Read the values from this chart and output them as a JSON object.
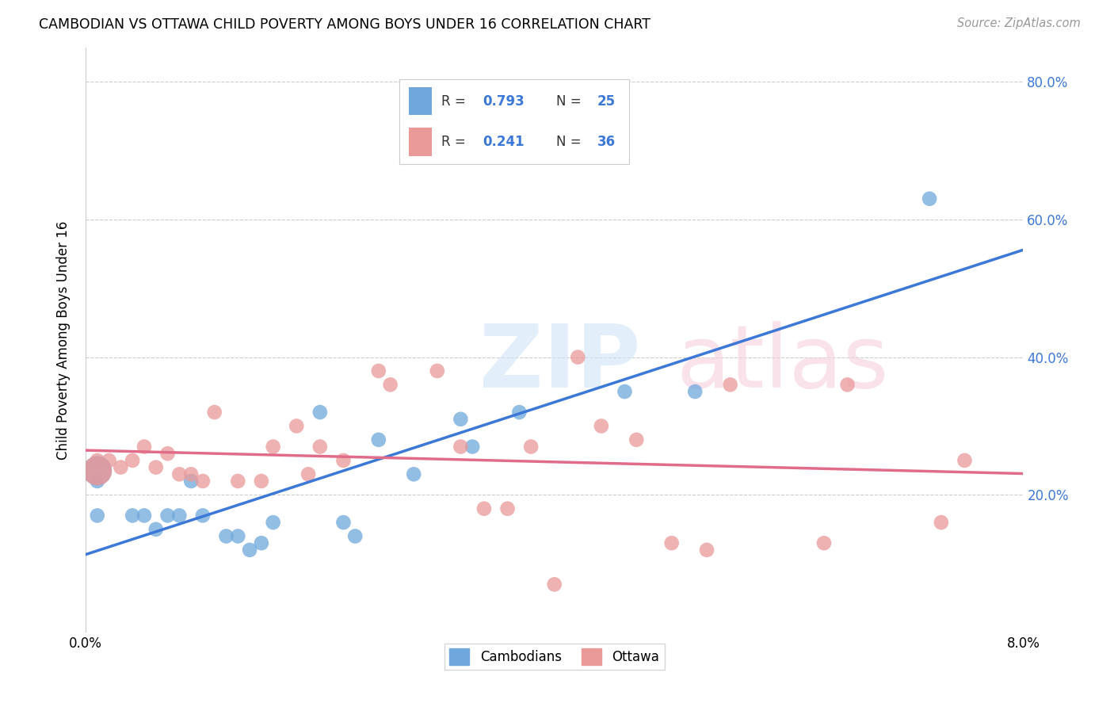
{
  "title": "CAMBODIAN VS OTTAWA CHILD POVERTY AMONG BOYS UNDER 16 CORRELATION CHART",
  "source": "Source: ZipAtlas.com",
  "ylabel": "Child Poverty Among Boys Under 16",
  "xlim": [
    0.0,
    0.08
  ],
  "ylim": [
    0.0,
    0.85
  ],
  "yticks": [
    0.0,
    0.2,
    0.4,
    0.6,
    0.8
  ],
  "xticks": [
    0.0,
    0.01,
    0.02,
    0.03,
    0.04,
    0.05,
    0.06,
    0.07,
    0.08
  ],
  "ytick_labels_right": [
    "",
    "20.0%",
    "40.0%",
    "60.0%",
    "80.0%"
  ],
  "xtick_labels": [
    "0.0%",
    "",
    "",
    "",
    "",
    "",
    "",
    "",
    "8.0%"
  ],
  "cambodian_color": "#6fa8dc",
  "ottawa_color": "#ea9999",
  "cambodian_line_color": "#3c78d8",
  "ottawa_line_color": "#e06c8a",
  "right_tick_color": "#3c78d8",
  "background_color": "#ffffff",
  "grid_color": "#cccccc",
  "legend_R_cambodian": "0.793",
  "legend_N_cambodian": "25",
  "legend_R_ottawa": "0.241",
  "legend_N_ottawa": "36",
  "cambodian_x": [
    0.001,
    0.001,
    0.004,
    0.005,
    0.006,
    0.007,
    0.008,
    0.009,
    0.01,
    0.012,
    0.013,
    0.014,
    0.015,
    0.016,
    0.02,
    0.022,
    0.023,
    0.025,
    0.028,
    0.032,
    0.033,
    0.037,
    0.046,
    0.052,
    0.072
  ],
  "cambodian_y": [
    0.22,
    0.17,
    0.17,
    0.17,
    0.15,
    0.17,
    0.17,
    0.22,
    0.17,
    0.14,
    0.14,
    0.12,
    0.13,
    0.16,
    0.32,
    0.16,
    0.14,
    0.28,
    0.23,
    0.31,
    0.27,
    0.32,
    0.35,
    0.35,
    0.63
  ],
  "ottawa_x": [
    0.001,
    0.002,
    0.003,
    0.004,
    0.005,
    0.006,
    0.007,
    0.008,
    0.009,
    0.01,
    0.011,
    0.013,
    0.015,
    0.016,
    0.018,
    0.019,
    0.02,
    0.022,
    0.025,
    0.026,
    0.03,
    0.032,
    0.034,
    0.036,
    0.038,
    0.042,
    0.044,
    0.047,
    0.05,
    0.053,
    0.055,
    0.063,
    0.065,
    0.073,
    0.075,
    0.04
  ],
  "ottawa_y": [
    0.25,
    0.25,
    0.24,
    0.25,
    0.27,
    0.24,
    0.26,
    0.23,
    0.23,
    0.22,
    0.32,
    0.22,
    0.22,
    0.27,
    0.3,
    0.23,
    0.27,
    0.25,
    0.38,
    0.36,
    0.38,
    0.27,
    0.18,
    0.18,
    0.27,
    0.4,
    0.3,
    0.28,
    0.13,
    0.12,
    0.36,
    0.13,
    0.36,
    0.16,
    0.25,
    0.07
  ]
}
